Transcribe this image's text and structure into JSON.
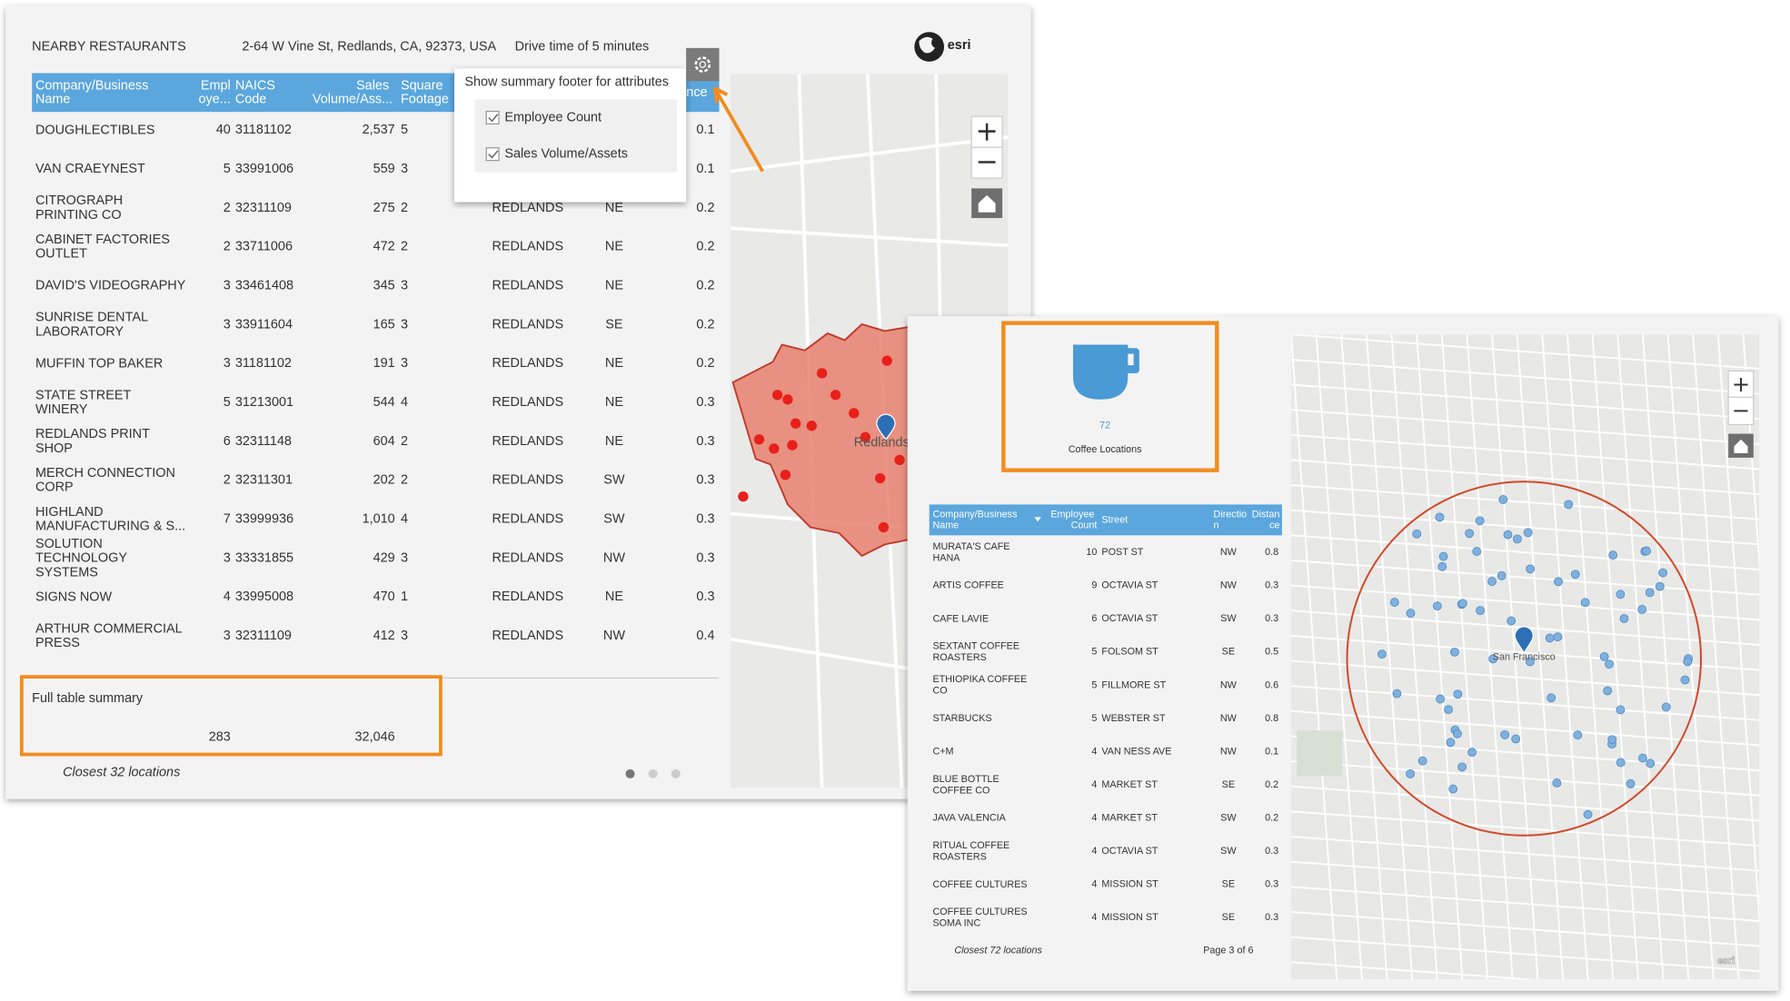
{
  "panel1": {
    "title": "NEARBY RESTAURANTS",
    "address": "2-64 W Vine St, Redlands, CA, 92373, USA",
    "drive_time": "Drive time of 5 minutes",
    "brand": "esri",
    "table": {
      "headers": [
        "Company/Business Name",
        "Employe...",
        "NAICS Code",
        "Sales Volume/Ass...",
        "Square Footage",
        "Distance"
      ],
      "rows": [
        {
          "name": "DOUGHLECTIBLES",
          "employees": "40",
          "naics": "31181102",
          "sales": "2,537",
          "sqft": "5",
          "distance": "0.1"
        },
        {
          "name": "VAN CRAEYNEST",
          "employees": "5",
          "naics": "33991006",
          "sales": "559",
          "sqft": "3",
          "distance": "0.1"
        },
        {
          "name": "CITROGRAPH PRINTING CO",
          "employees": "2",
          "naics": "32311109",
          "sales": "275",
          "sqft": "2",
          "city": "REDLANDS",
          "direction": "NE",
          "distance": "0.2"
        },
        {
          "name": "CABINET FACTORIES OUTLET",
          "employees": "2",
          "naics": "33711006",
          "sales": "472",
          "sqft": "2",
          "city": "REDLANDS",
          "direction": "NE",
          "distance": "0.2"
        },
        {
          "name": "DAVID'S VIDEOGRAPHY",
          "employees": "3",
          "naics": "33461408",
          "sales": "345",
          "sqft": "3",
          "city": "REDLANDS",
          "direction": "NE",
          "distance": "0.2"
        },
        {
          "name": "SUNRISE DENTAL LABORATORY",
          "employees": "3",
          "naics": "33911604",
          "sales": "165",
          "sqft": "3",
          "city": "REDLANDS",
          "direction": "SE",
          "distance": "0.2"
        },
        {
          "name": "MUFFIN TOP BAKER",
          "employees": "3",
          "naics": "31181102",
          "sales": "191",
          "sqft": "3",
          "city": "REDLANDS",
          "direction": "NE",
          "distance": "0.2"
        },
        {
          "name": "STATE STREET WINERY",
          "employees": "5",
          "naics": "31213001",
          "sales": "544",
          "sqft": "4",
          "city": "REDLANDS",
          "direction": "NE",
          "distance": "0.3"
        },
        {
          "name": "REDLANDS PRINT SHOP",
          "employees": "6",
          "naics": "32311148",
          "sales": "604",
          "sqft": "2",
          "city": "REDLANDS",
          "direction": "NE",
          "distance": "0.3"
        },
        {
          "name": "MERCH CONNECTION CORP",
          "employees": "2",
          "naics": "32311301",
          "sales": "202",
          "sqft": "2",
          "city": "REDLANDS",
          "direction": "SW",
          "distance": "0.3"
        },
        {
          "name": "HIGHLAND MANUFACTURING & S...",
          "employees": "7",
          "naics": "33999936",
          "sales": "1,010",
          "sqft": "4",
          "city": "REDLANDS",
          "direction": "SW",
          "distance": "0.3"
        },
        {
          "name": "SOLUTION TECHNOLOGY SYSTEMS",
          "employees": "3",
          "naics": "33331855",
          "sales": "429",
          "sqft": "3",
          "city": "REDLANDS",
          "direction": "NW",
          "distance": "0.3"
        },
        {
          "name": "SIGNS NOW",
          "employees": "4",
          "naics": "33995008",
          "sales": "470",
          "sqft": "1",
          "city": "REDLANDS",
          "direction": "NE",
          "distance": "0.3"
        },
        {
          "name": "ARTHUR COMMERCIAL PRESS",
          "employees": "3",
          "naics": "32311109",
          "sales": "412",
          "sqft": "3",
          "city": "REDLANDS",
          "direction": "NW",
          "distance": "0.4"
        }
      ]
    },
    "popup": {
      "title": "Show summary footer for attributes",
      "options": [
        "Employee Count",
        "Sales Volume/Assets"
      ]
    },
    "summary": {
      "title": "Full table summary",
      "employees": "283",
      "sales": "32,046"
    },
    "footer": "Closest 32 locations",
    "map_label": "Redlands"
  },
  "panel2": {
    "count": "72",
    "count_label": "Coffee Locations",
    "brand": "esri",
    "table": {
      "headers": [
        "Company/Business Name",
        "Employee Count",
        "Street",
        "Direction",
        "Distance"
      ],
      "rows": [
        {
          "name": "MURATA'S CAFE HANA",
          "employees": "10",
          "street": "POST ST",
          "direction": "NW",
          "distance": "0.8"
        },
        {
          "name": "ARTIS COFFEE",
          "employees": "9",
          "street": "OCTAVIA ST",
          "direction": "NW",
          "distance": "0.3"
        },
        {
          "name": "CAFE LAVIE",
          "employees": "6",
          "street": "OCTAVIA ST",
          "direction": "SW",
          "distance": "0.3"
        },
        {
          "name": "SEXTANT COFFEE ROASTERS",
          "employees": "5",
          "street": "FOLSOM ST",
          "direction": "SE",
          "distance": "0.5"
        },
        {
          "name": "ETHIOPIKA COFFEE CO",
          "employees": "5",
          "street": "FILLMORE ST",
          "direction": "NW",
          "distance": "0.6"
        },
        {
          "name": "STARBUCKS",
          "employees": "5",
          "street": "WEBSTER ST",
          "direction": "NW",
          "distance": "0.8"
        },
        {
          "name": "C+M",
          "employees": "4",
          "street": "VAN NESS AVE",
          "direction": "NW",
          "distance": "0.1"
        },
        {
          "name": "BLUE BOTTLE COFFEE CO",
          "employees": "4",
          "street": "MARKET ST",
          "direction": "SE",
          "distance": "0.2"
        },
        {
          "name": "JAVA VALENCIA",
          "employees": "4",
          "street": "MARKET ST",
          "direction": "SW",
          "distance": "0.2"
        },
        {
          "name": "RITUAL COFFEE ROASTERS",
          "employees": "4",
          "street": "OCTAVIA ST",
          "direction": "SW",
          "distance": "0.3"
        },
        {
          "name": "COFFEE CULTURES",
          "employees": "4",
          "street": "MISSION ST",
          "direction": "SE",
          "distance": "0.3"
        },
        {
          "name": "COFFEE CULTURES SOMA INC",
          "employees": "4",
          "street": "MISSION ST",
          "direction": "SE",
          "distance": "0.3"
        }
      ]
    },
    "footer": "Closest 72 locations",
    "pagination": "Page 3 of 6",
    "map_label": "San Francisco"
  }
}
